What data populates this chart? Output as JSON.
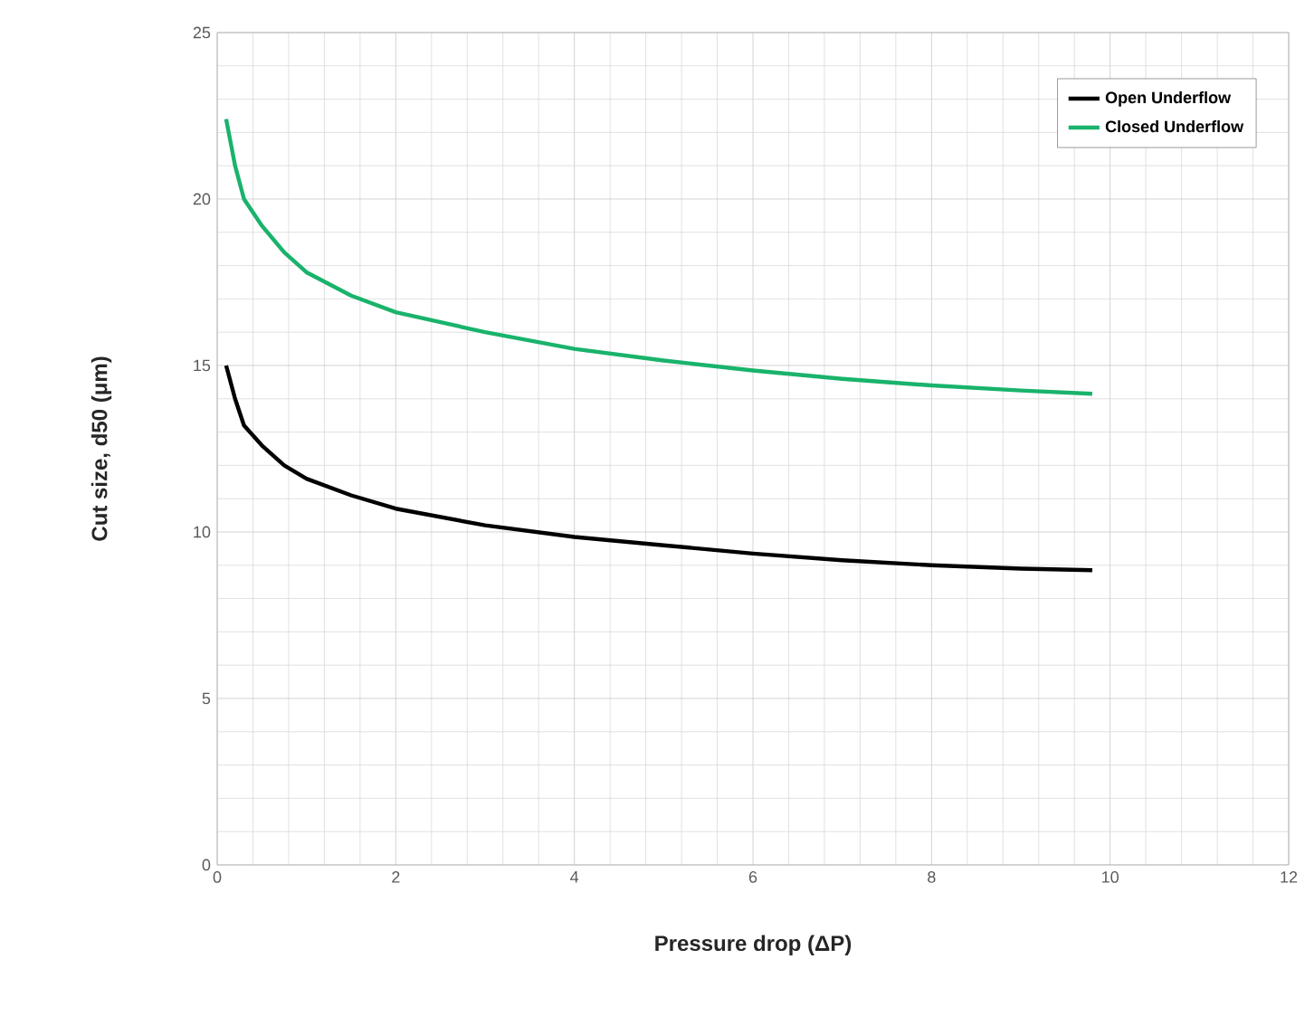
{
  "chart_data": {
    "type": "line",
    "xlabel": "Pressure drop (ΔP)",
    "ylabel": "Cut size, d50 (μm)",
    "xlim": [
      0,
      12
    ],
    "ylim": [
      0,
      25
    ],
    "xticks": [
      0,
      2,
      4,
      6,
      8,
      10,
      12
    ],
    "yticks": [
      0,
      5,
      10,
      15,
      20,
      25
    ],
    "grid": true,
    "legend": "top right",
    "marker": "none",
    "line_style": "solid",
    "series": [
      {
        "name": "Open Underflow",
        "color": "#000000",
        "x": [
          0.1,
          0.2,
          0.3,
          0.5,
          0.75,
          1,
          1.5,
          2,
          3,
          4,
          5,
          6,
          7,
          8,
          9,
          9.8
        ],
        "values": [
          15.0,
          14.0,
          13.2,
          12.6,
          12.0,
          11.6,
          11.1,
          10.7,
          10.2,
          9.85,
          9.6,
          9.35,
          9.15,
          9.0,
          8.9,
          8.85
        ]
      },
      {
        "name": "Closed Underflow",
        "color": "#19b36b",
        "x": [
          0.1,
          0.2,
          0.3,
          0.5,
          0.75,
          1,
          1.5,
          2,
          3,
          4,
          5,
          6,
          7,
          8,
          9,
          9.8
        ],
        "values": [
          22.4,
          21.0,
          20.0,
          19.2,
          18.4,
          17.8,
          17.1,
          16.6,
          16.0,
          15.5,
          15.15,
          14.85,
          14.6,
          14.4,
          14.25,
          14.15
        ]
      }
    ]
  }
}
